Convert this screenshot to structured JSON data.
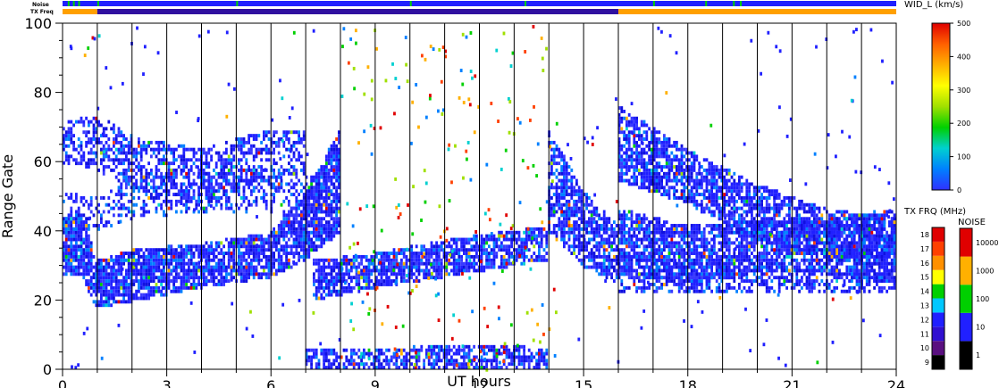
{
  "chart_data": {
    "type": "heatmap",
    "xlabel": "UT hours",
    "ylabel": "Range Gate",
    "xlim": [
      0,
      24
    ],
    "ylim": [
      0,
      100
    ],
    "x_ticks": [
      0,
      3,
      6,
      9,
      12,
      15,
      18,
      21,
      24
    ],
    "y_ticks": [
      0,
      20,
      40,
      60,
      80,
      100
    ],
    "vertical_gridlines_every_hours": 1,
    "colorbar_width": {
      "title": "WID_L (km/s)",
      "ticks": [
        0,
        100,
        200,
        300,
        400,
        500
      ],
      "min": 0,
      "max": 500,
      "colors": [
        "#3030ff",
        "#0080ff",
        "#00d0d0",
        "#00d000",
        "#a0e000",
        "#ffff00",
        "#ffb000",
        "#ff6000",
        "#e00000"
      ]
    },
    "colorbar_txfreq": {
      "title": "TX FRQ (MHz)",
      "ticks": [
        9,
        10,
        11,
        12,
        13,
        14,
        15,
        16,
        17,
        18
      ],
      "colors": [
        "#000000",
        "#5a1080",
        "#3010d0",
        "#2020ff",
        "#00c8ff",
        "#00d000",
        "#ffff00",
        "#ff9000",
        "#ff4000",
        "#e00000"
      ]
    },
    "colorbar_noise": {
      "title": "NOISE",
      "ticks": [
        "1",
        "10",
        "100",
        "1000",
        "10000"
      ],
      "colors": [
        "#000000",
        "#2020ff",
        "#00d000",
        "#ffb000",
        "#e00000"
      ]
    },
    "status_bars": [
      {
        "label": "Noise",
        "segments": [
          {
            "start": 0,
            "end": 24,
            "color": "#2020ff"
          }
        ],
        "marks": [
          0.15,
          0.3,
          0.45,
          1.0,
          5.0,
          10.0,
          13.3,
          17.0,
          18.5,
          19.3,
          19.5
        ]
      },
      {
        "label": "TX Freq",
        "segments": [
          {
            "start": 0,
            "end": 1,
            "color": "#ffa000"
          },
          {
            "start": 1,
            "end": 16,
            "color": "#3010a0"
          },
          {
            "start": 16,
            "end": 24,
            "color": "#ffa000"
          }
        ]
      }
    ],
    "bands": [
      {
        "name": "echo",
        "points": [
          [
            0,
            27,
            42
          ],
          [
            0.5,
            28,
            45
          ],
          [
            1,
            18,
            30
          ],
          [
            2,
            20,
            33
          ],
          [
            4,
            24,
            35
          ],
          [
            6,
            27,
            38
          ],
          [
            7,
            32,
            50
          ],
          [
            8,
            40,
            68
          ]
        ],
        "density": 0.85
      },
      {
        "name": "echo",
        "points": [
          [
            0,
            60,
            70
          ],
          [
            1,
            58,
            72
          ],
          [
            2,
            52,
            66
          ],
          [
            4,
            48,
            62
          ],
          [
            6,
            55,
            68
          ],
          [
            7,
            58,
            68
          ]
        ],
        "density": 0.5
      },
      {
        "name": "echo",
        "points": [
          [
            0,
            40,
            50
          ],
          [
            1,
            40,
            48
          ],
          [
            2,
            44,
            54
          ],
          [
            4,
            46,
            56
          ],
          [
            6,
            45,
            55
          ],
          [
            7.5,
            44,
            56
          ]
        ],
        "density": 0.35
      },
      {
        "name": "echo",
        "points": [
          [
            7.2,
            20,
            30
          ],
          [
            9,
            24,
            32
          ],
          [
            11,
            27,
            36
          ],
          [
            14,
            32,
            40
          ]
        ],
        "density": 0.75
      },
      {
        "name": "echo",
        "points": [
          [
            7,
            0,
            4
          ],
          [
            10,
            0,
            5
          ],
          [
            13,
            0,
            6
          ],
          [
            14,
            0,
            4
          ]
        ],
        "density": 0.65
      },
      {
        "name": "echo",
        "points": [
          [
            14,
            40,
            68
          ],
          [
            15,
            30,
            50
          ],
          [
            16,
            25,
            40
          ]
        ],
        "density": 0.7
      },
      {
        "name": "echo",
        "points": [
          [
            16,
            55,
            75
          ],
          [
            18,
            48,
            62
          ],
          [
            20,
            38,
            52
          ],
          [
            22,
            32,
            45
          ],
          [
            24,
            30,
            42
          ]
        ],
        "density": 0.7
      },
      {
        "name": "echo",
        "points": [
          [
            16,
            28,
            45
          ],
          [
            18,
            25,
            40
          ],
          [
            20,
            28,
            42
          ],
          [
            22,
            28,
            42
          ],
          [
            24,
            25,
            45
          ]
        ],
        "density": 0.75
      },
      {
        "name": "echo",
        "points": [
          [
            16,
            22,
            32
          ],
          [
            18,
            22,
            30
          ],
          [
            20,
            22,
            28
          ],
          [
            24,
            22,
            28
          ]
        ],
        "density": 0.5
      }
    ]
  },
  "status_labels": {
    "noise": "Noise",
    "txfreq": "TX Freq"
  }
}
